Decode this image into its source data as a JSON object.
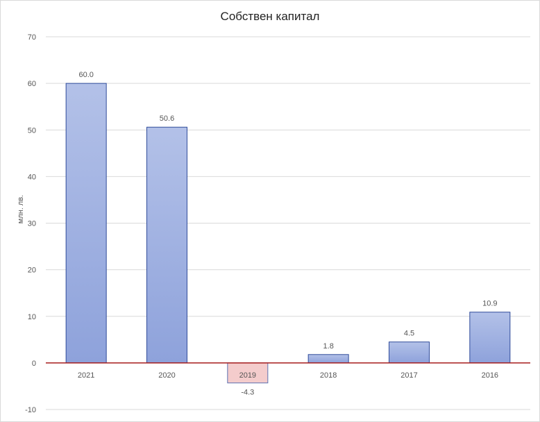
{
  "chart_data": {
    "type": "bar",
    "title": "Собствен  капитал",
    "ylabel": "млн. лв.",
    "xlabel": "",
    "categories": [
      "2021",
      "2020",
      "2019",
      "2018",
      "2017",
      "2016"
    ],
    "values": [
      60.0,
      50.6,
      -4.3,
      1.8,
      4.5,
      10.9
    ],
    "value_labels": [
      "60.0",
      "50.6",
      "-4.3",
      "1.8",
      "4.5",
      "10.9"
    ],
    "ylim": [
      -10,
      70
    ],
    "yticks": [
      -10,
      0,
      10,
      20,
      30,
      40,
      50,
      60,
      70
    ],
    "grid": true,
    "legend": "none",
    "colors": {
      "positive_fill": "#9aaddf",
      "positive_stroke": "#2f4b9a",
      "negative_fill": "#f4cccc",
      "negative_stroke": "#5a6fb0",
      "zero_line": "#a61c1c",
      "grid": "#d9d9d9"
    }
  }
}
